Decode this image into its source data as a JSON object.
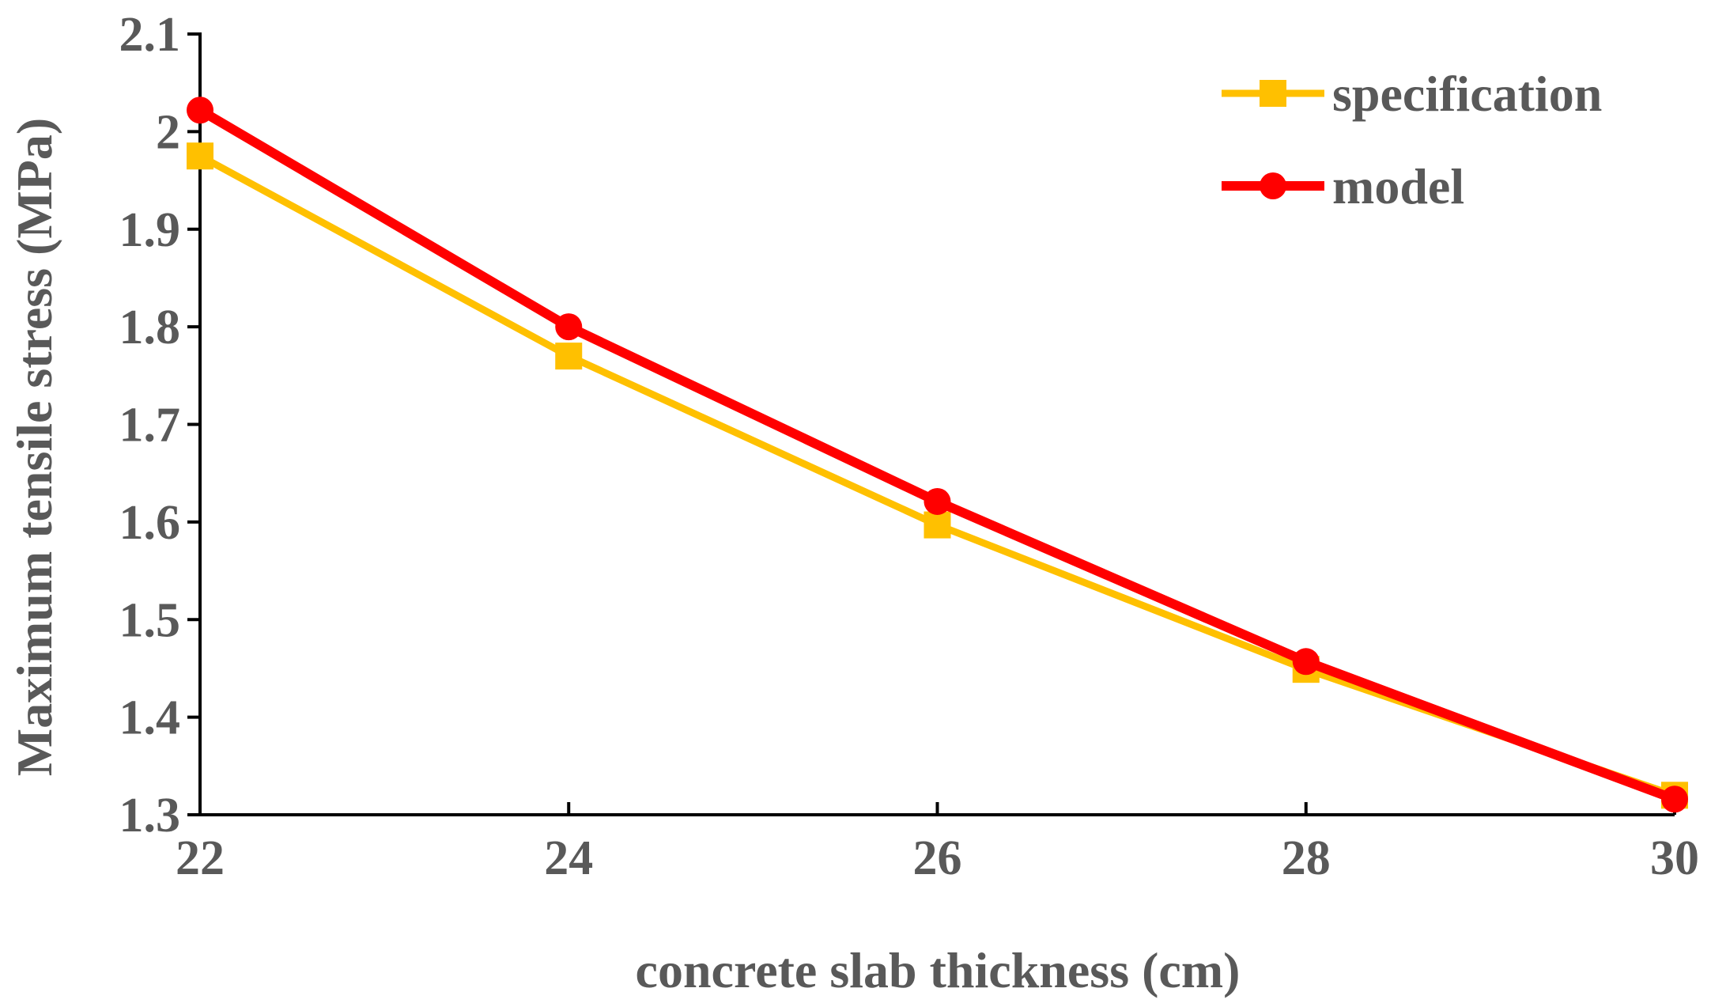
{
  "chart_data": {
    "type": "line",
    "title": "",
    "xlabel": "concrete slab thickness (cm)",
    "ylabel": "Maximum tensile stress (MPa)",
    "x": [
      22,
      24,
      26,
      28,
      30
    ],
    "xlim": [
      22,
      30
    ],
    "ylim": [
      1.3,
      2.1
    ],
    "x_ticks": [
      "22",
      "24",
      "26",
      "28",
      "30"
    ],
    "y_ticks": [
      "1.3",
      "1.4",
      "1.5",
      "1.6",
      "1.7",
      "1.8",
      "1.9",
      "2",
      "2.1"
    ],
    "grid": false,
    "legend_position": "top-right",
    "series": [
      {
        "name": "specification",
        "marker": "square",
        "color": "#FFC000",
        "values": [
          1.975,
          1.77,
          1.597,
          1.449,
          1.32
        ]
      },
      {
        "name": "model",
        "marker": "circle",
        "color": "#FF0000",
        "values": [
          2.022,
          1.8,
          1.621,
          1.457,
          1.316
        ]
      }
    ]
  }
}
